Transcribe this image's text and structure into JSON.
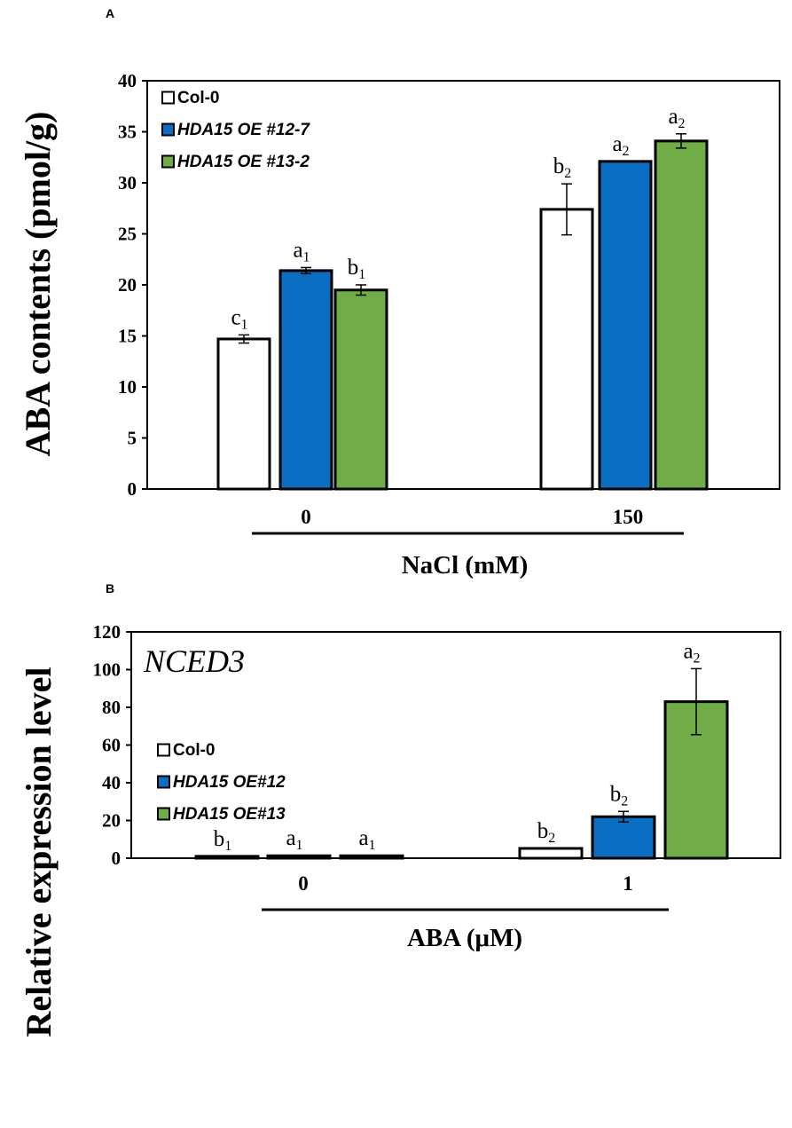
{
  "chart_data": [
    {
      "panel": "A",
      "type": "bar",
      "ylabel": "ABA contents (pmol/g)",
      "xlabel": "NaCl (mM)",
      "ylim": [
        0,
        40
      ],
      "yticks": [
        0,
        5,
        10,
        15,
        20,
        25,
        30,
        35,
        40
      ],
      "categories": [
        "0",
        "150"
      ],
      "legend_position": "top-left",
      "series": [
        {
          "name": "Col-0",
          "italic": false,
          "color": "#ffffff",
          "values": [
            14.7,
            27.4
          ],
          "errors": [
            0.4,
            2.5
          ],
          "letters": [
            [
              "c",
              "1"
            ],
            [
              "b",
              "2"
            ]
          ]
        },
        {
          "name": "HDA15 OE #12-7",
          "italic": true,
          "color": "#0a6fc2",
          "values": [
            21.4,
            32.1
          ],
          "errors": [
            0.3,
            0.0
          ],
          "letters": [
            [
              "a",
              "1"
            ],
            [
              "a",
              "2"
            ]
          ]
        },
        {
          "name": "HDA15 OE #13-2",
          "italic": true,
          "color": "#70ad47",
          "values": [
            19.5,
            34.1
          ],
          "errors": [
            0.5,
            0.7
          ],
          "letters": [
            [
              "b",
              "1"
            ],
            [
              "a",
              "2"
            ]
          ]
        }
      ]
    },
    {
      "panel": "B",
      "type": "bar",
      "title": "NCED3",
      "ylabel": "Relative expression  level",
      "xlabel": "ABA (μM)",
      "ylim": [
        0,
        120
      ],
      "yticks": [
        0,
        20,
        40,
        60,
        80,
        100,
        120
      ],
      "categories": [
        "0",
        "1"
      ],
      "legend_position": "top-left",
      "series": [
        {
          "name": "Col-0",
          "italic": false,
          "color": "#ffffff",
          "values": [
            1.0,
            5.2
          ],
          "errors": [
            0.0,
            0.0
          ],
          "letters": [
            [
              "b",
              "1"
            ],
            [
              "b",
              "2"
            ]
          ]
        },
        {
          "name": "HDA15 OE#12",
          "italic": true,
          "color": "#0a6fc2",
          "values": [
            1.3,
            22.0
          ],
          "errors": [
            0.0,
            2.8
          ],
          "letters": [
            [
              "a",
              "1"
            ],
            [
              "b",
              "2"
            ]
          ]
        },
        {
          "name": "HDA15 OE#13",
          "italic": true,
          "color": "#70ad47",
          "values": [
            1.3,
            83.0
          ],
          "errors": [
            0.0,
            17.5
          ],
          "letters": [
            [
              "a",
              "1"
            ],
            [
              "a",
              "2"
            ]
          ]
        }
      ]
    }
  ]
}
